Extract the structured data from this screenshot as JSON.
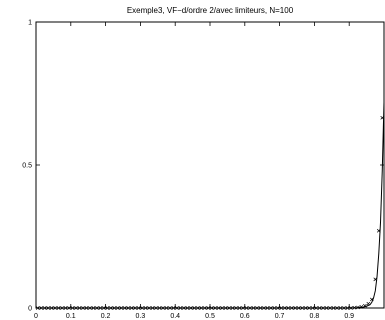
{
  "chart_data": {
    "type": "line",
    "title": "Exemple3, VF−d/ordre 2/avec limiteurs, N=100",
    "xlabel": "",
    "ylabel": "",
    "xlim": [
      0,
      1
    ],
    "ylim": [
      0,
      1
    ],
    "grid": false,
    "legend": "none",
    "x_ticks": [
      0,
      0.1,
      0.2,
      0.3,
      0.4,
      0.5,
      0.6,
      0.7,
      0.8,
      0.9
    ],
    "x_tick_labels": [
      "0",
      "0.1",
      "0.2",
      "0.3",
      "0.4",
      "0.5",
      "0.6",
      "0.7",
      "0.8",
      "0.9"
    ],
    "y_ticks": [
      0,
      0.5,
      1
    ],
    "y_tick_labels": [
      "0",
      "0.5",
      "1"
    ],
    "series": [
      {
        "style": "solid line",
        "color": "#000000",
        "x": [
          0,
          0.9,
          0.92,
          0.94,
          0.95,
          0.96,
          0.965,
          0.97,
          0.975,
          0.98,
          0.985,
          0.99,
          0.995,
          1.0
        ],
        "y": [
          0,
          0,
          0.001,
          0.003,
          0.006,
          0.012,
          0.02,
          0.035,
          0.06,
          0.11,
          0.19,
          0.3,
          0.48,
          0.72
        ]
      },
      {
        "style": "x markers",
        "color": "#000000",
        "x": [
          0.005,
          0.015,
          0.025,
          0.035,
          0.045,
          0.055,
          0.065,
          0.075,
          0.085,
          0.095,
          0.105,
          0.115,
          0.125,
          0.135,
          0.145,
          0.155,
          0.165,
          0.175,
          0.185,
          0.195,
          0.205,
          0.215,
          0.225,
          0.235,
          0.245,
          0.255,
          0.265,
          0.275,
          0.285,
          0.295,
          0.305,
          0.315,
          0.325,
          0.335,
          0.345,
          0.355,
          0.365,
          0.375,
          0.385,
          0.395,
          0.405,
          0.415,
          0.425,
          0.435,
          0.445,
          0.455,
          0.465,
          0.475,
          0.485,
          0.495,
          0.505,
          0.515,
          0.525,
          0.535,
          0.545,
          0.555,
          0.565,
          0.575,
          0.585,
          0.595,
          0.605,
          0.615,
          0.625,
          0.635,
          0.645,
          0.655,
          0.665,
          0.675,
          0.685,
          0.695,
          0.705,
          0.715,
          0.725,
          0.735,
          0.745,
          0.755,
          0.765,
          0.775,
          0.785,
          0.795,
          0.805,
          0.815,
          0.825,
          0.835,
          0.845,
          0.855,
          0.865,
          0.875,
          0.885,
          0.895,
          0.905,
          0.915,
          0.925,
          0.935,
          0.945,
          0.955,
          0.965,
          0.975,
          0.985,
          0.995
        ],
        "y": [
          0,
          0,
          0,
          0,
          0,
          0,
          0,
          0,
          0,
          0,
          0,
          0,
          0,
          0,
          0,
          0,
          0,
          0,
          0,
          0,
          0,
          0,
          0,
          0,
          0,
          0,
          0,
          0,
          0,
          0,
          0,
          0,
          0,
          0,
          0,
          0,
          0,
          0,
          0,
          0,
          0,
          0,
          0,
          0,
          0,
          0,
          0,
          0,
          0,
          0,
          0,
          0,
          0,
          0,
          0,
          0,
          0,
          0,
          0,
          0,
          0,
          0,
          0,
          0,
          0,
          0,
          0,
          0,
          0,
          0,
          0,
          0,
          0,
          0,
          0,
          0,
          0,
          0,
          0,
          0,
          0,
          0,
          0,
          0,
          0,
          0,
          0,
          0,
          0,
          0,
          0,
          0.001,
          0.002,
          0.004,
          0.008,
          0.015,
          0.03,
          0.1,
          0.27,
          0.665
        ]
      }
    ]
  }
}
